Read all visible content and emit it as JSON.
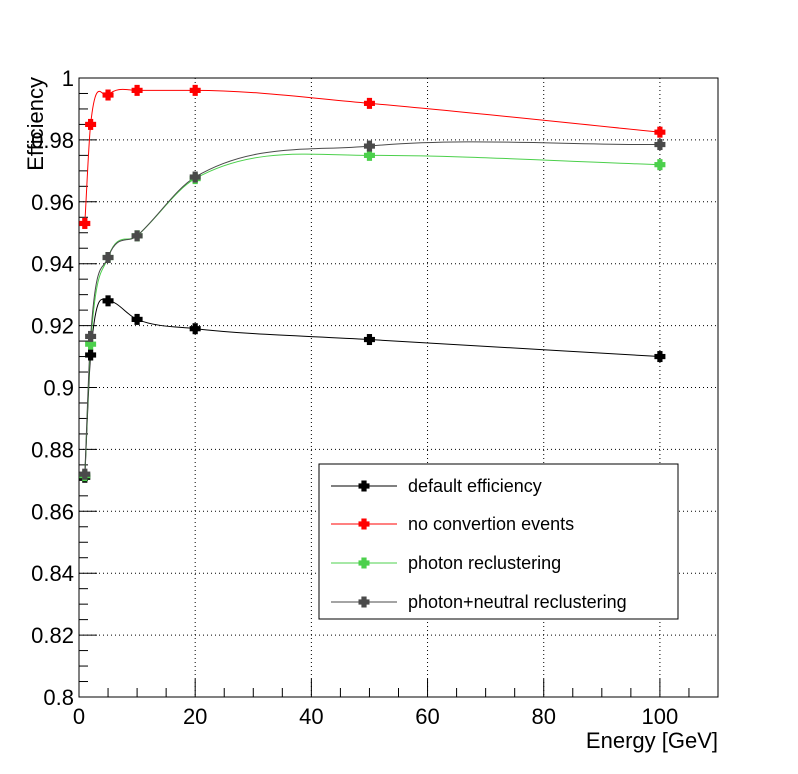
{
  "chart_data": {
    "type": "line",
    "xlabel": "Energy [GeV]",
    "ylabel": "Efficiency",
    "xlim": [
      0,
      110
    ],
    "ylim": [
      0.8,
      1.0
    ],
    "grid": true,
    "legend_position": "bottom-right",
    "x_ticks": [
      {
        "value": 0,
        "label": "0"
      },
      {
        "value": 20,
        "label": "20"
      },
      {
        "value": 40,
        "label": "40"
      },
      {
        "value": 60,
        "label": "60"
      },
      {
        "value": 80,
        "label": "80"
      },
      {
        "value": 100,
        "label": "100"
      }
    ],
    "y_ticks": [
      {
        "value": 0.8,
        "label": "0.8"
      },
      {
        "value": 0.82,
        "label": "0.82"
      },
      {
        "value": 0.84,
        "label": "0.84"
      },
      {
        "value": 0.86,
        "label": "0.86"
      },
      {
        "value": 0.88,
        "label": "0.88"
      },
      {
        "value": 0.9,
        "label": "0.9"
      },
      {
        "value": 0.92,
        "label": "0.92"
      },
      {
        "value": 0.94,
        "label": "0.94"
      },
      {
        "value": 0.96,
        "label": "0.96"
      },
      {
        "value": 0.98,
        "label": "0.98"
      },
      {
        "value": 1.0,
        "label": "1"
      }
    ],
    "series": [
      {
        "name": "default efficiency",
        "color": "#000000",
        "x": [
          1,
          2,
          5,
          10,
          20,
          50,
          100
        ],
        "y": [
          0.871,
          0.9105,
          0.928,
          0.922,
          0.919,
          0.9155,
          0.91
        ]
      },
      {
        "name": "no convertion events",
        "color": "#ff0000",
        "x": [
          1,
          2,
          5,
          10,
          20,
          50,
          100
        ],
        "y": [
          0.953,
          0.985,
          0.9945,
          0.996,
          0.996,
          0.9918,
          0.9825
        ]
      },
      {
        "name": "photon reclustering",
        "color": "#4cd04c",
        "x": [
          1,
          2,
          5,
          10,
          20,
          50,
          100
        ],
        "y": [
          0.8715,
          0.914,
          0.942,
          0.949,
          0.9675,
          0.975,
          0.972
        ]
      },
      {
        "name": "photon+neutral reclustering",
        "color": "#4a4a4a",
        "x": [
          1,
          2,
          5,
          10,
          20,
          50,
          100
        ],
        "y": [
          0.872,
          0.9165,
          0.942,
          0.949,
          0.968,
          0.978,
          0.9785
        ]
      }
    ]
  }
}
